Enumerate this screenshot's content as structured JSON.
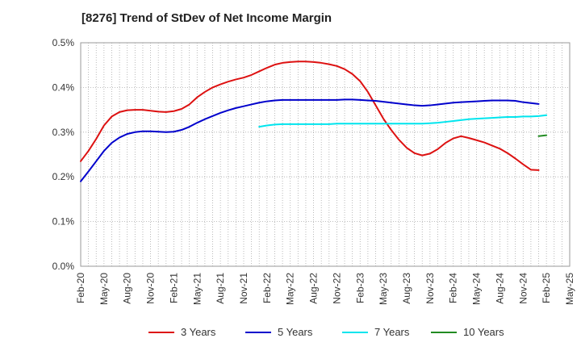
{
  "chart_data": {
    "type": "line",
    "title": "[8276]  Trend of StDev of Net Income Margin",
    "xlabel": "",
    "ylabel": "",
    "ylim": [
      0,
      0.5
    ],
    "y_ticks": [
      "0.0%",
      "0.1%",
      "0.2%",
      "0.3%",
      "0.4%",
      "0.5%"
    ],
    "x_ticks": [
      "Feb-20",
      "May-20",
      "Aug-20",
      "Nov-20",
      "Feb-21",
      "May-21",
      "Aug-21",
      "Nov-21",
      "Feb-22",
      "May-22",
      "Aug-22",
      "Nov-22",
      "Feb-23",
      "May-23",
      "Aug-23",
      "Nov-23",
      "Feb-24",
      "May-24",
      "Aug-24",
      "Nov-24",
      "Feb-25",
      "May-25"
    ],
    "grid": true,
    "legend_position": "bottom",
    "series": [
      {
        "name": "3 Years",
        "color": "#dd1111",
        "start_index": 0,
        "values": [
          0.235,
          0.258,
          0.285,
          0.315,
          0.335,
          0.345,
          0.349,
          0.35,
          0.35,
          0.348,
          0.346,
          0.345,
          0.347,
          0.352,
          0.362,
          0.378,
          0.39,
          0.4,
          0.407,
          0.413,
          0.418,
          0.422,
          0.428,
          0.436,
          0.444,
          0.451,
          0.455,
          0.457,
          0.458,
          0.458,
          0.457,
          0.455,
          0.452,
          0.448,
          0.441,
          0.43,
          0.414,
          0.39,
          0.36,
          0.33,
          0.305,
          0.283,
          0.265,
          0.253,
          0.248,
          0.252,
          0.262,
          0.276,
          0.286,
          0.291,
          0.287,
          0.282,
          0.277,
          0.27,
          0.263,
          0.253,
          0.241,
          0.228,
          0.216,
          0.215
        ]
      },
      {
        "name": "5 Years",
        "color": "#0000cc",
        "start_index": 0,
        "values": [
          0.19,
          0.212,
          0.235,
          0.258,
          0.276,
          0.288,
          0.296,
          0.3,
          0.302,
          0.302,
          0.301,
          0.3,
          0.301,
          0.305,
          0.312,
          0.321,
          0.329,
          0.336,
          0.343,
          0.349,
          0.354,
          0.358,
          0.362,
          0.366,
          0.369,
          0.371,
          0.372,
          0.372,
          0.372,
          0.372,
          0.372,
          0.372,
          0.372,
          0.372,
          0.373,
          0.373,
          0.372,
          0.371,
          0.37,
          0.368,
          0.366,
          0.364,
          0.362,
          0.36,
          0.359,
          0.36,
          0.362,
          0.364,
          0.366,
          0.367,
          0.368,
          0.369,
          0.37,
          0.371,
          0.371,
          0.371,
          0.37,
          0.367,
          0.365,
          0.363
        ]
      },
      {
        "name": "7 Years",
        "color": "#00e5ee",
        "start_index": 23,
        "values": [
          0.312,
          0.315,
          0.317,
          0.318,
          0.318,
          0.318,
          0.318,
          0.318,
          0.318,
          0.318,
          0.319,
          0.319,
          0.319,
          0.319,
          0.319,
          0.319,
          0.319,
          0.319,
          0.319,
          0.319,
          0.319,
          0.319,
          0.32,
          0.321,
          0.323,
          0.325,
          0.327,
          0.329,
          0.33,
          0.331,
          0.332,
          0.333,
          0.334,
          0.334,
          0.335,
          0.335,
          0.336,
          0.338
        ]
      },
      {
        "name": "10 Years",
        "color": "#228b22",
        "start_index": 59,
        "values": [
          0.291,
          0.293
        ]
      }
    ]
  }
}
